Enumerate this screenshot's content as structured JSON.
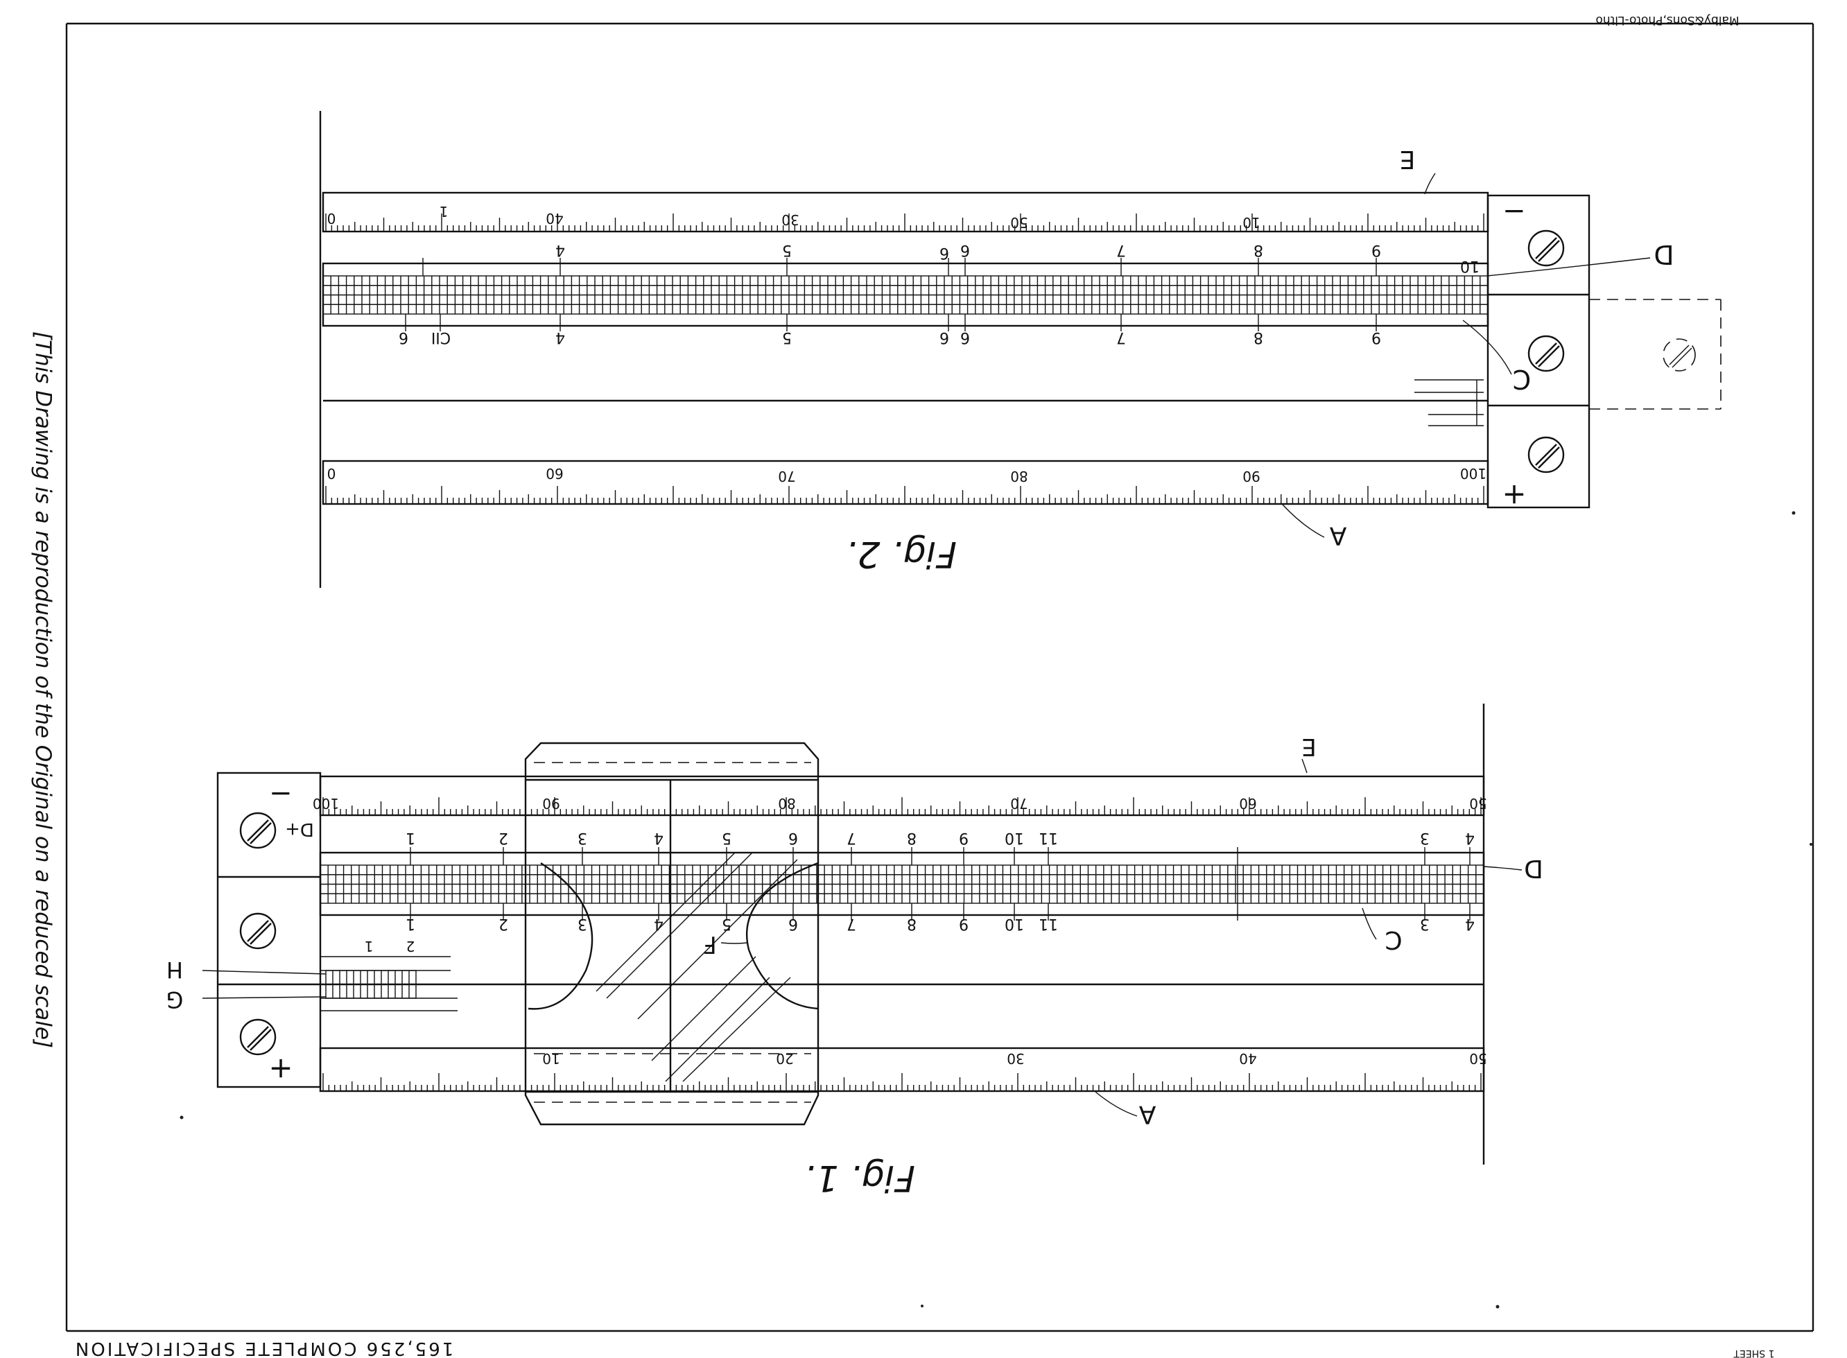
{
  "document": {
    "printer_mark": "Malby&Sons,Photo-Litho",
    "spec_title": "165,256  COMPLETE  SPECIFICATION",
    "side_note": "[This Drawing is a reproduction of the Original on a reduced scale]",
    "page_corner": "1 SHEET"
  },
  "fig2": {
    "title": "Fig. 2.",
    "labels": {
      "E": "E",
      "D": "D",
      "C": "C",
      "A": "A",
      "minus": "−",
      "plus": "+"
    },
    "top_scale": [
      "0",
      "1",
      "40",
      "",
      "30",
      "",
      "50",
      "",
      "10",
      ""
    ],
    "top_scale_marks": [
      "0",
      "1",
      "40",
      "30",
      "50",
      "10"
    ],
    "bottom_scale": [
      "0",
      "60",
      "70",
      "80",
      "90",
      "100"
    ],
    "upper_marks": [
      "4",
      "5",
      "6",
      "6",
      "7",
      "8",
      "9",
      "10"
    ],
    "lower_marks": [
      "6",
      "CII",
      "4",
      "5",
      "6",
      "6",
      "7",
      "8",
      "9"
    ]
  },
  "fig1": {
    "title": "Fig. 1.",
    "labels": {
      "E": "E",
      "D": "D",
      "C": "C",
      "A": "A",
      "F": "F",
      "G": "G",
      "H": "H",
      "minus": "−",
      "plus": "+",
      "d_plus": "D+"
    },
    "top_scale": [
      "100",
      "90",
      "80",
      "70",
      "60",
      "50"
    ],
    "bottom_scale": [
      "10",
      "20",
      "30",
      "40",
      "50"
    ],
    "upper_marks": [
      "1",
      "2",
      "3",
      "4",
      "5",
      "6",
      "7",
      "8",
      "9",
      "10",
      "11",
      "3",
      "4"
    ],
    "lower_marks": [
      "1",
      "2",
      "3",
      "4",
      "5",
      "6",
      "7",
      "8",
      "9",
      "10",
      "11",
      "3",
      "4"
    ],
    "small_scale": [
      "1",
      "2"
    ]
  }
}
